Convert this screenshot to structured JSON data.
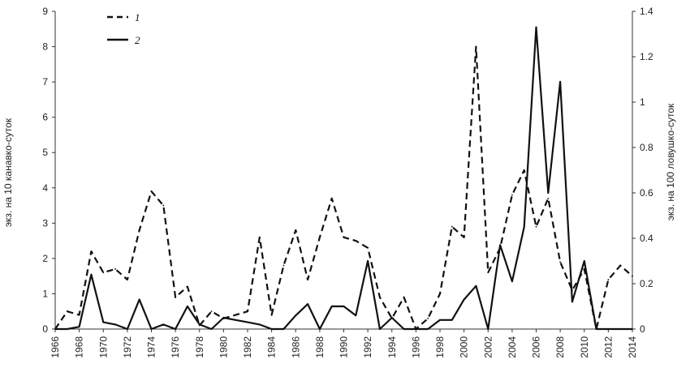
{
  "chart_data": {
    "type": "line",
    "title": "",
    "xlabel": "",
    "ylabel_left": "экз. на 10 канавко-суток",
    "ylabel_right": "экз. на 100 ловушко-суток",
    "xlim": [
      1966,
      2014
    ],
    "ylim_left": [
      0,
      9
    ],
    "ylim_right": [
      0,
      1.4
    ],
    "x_ticks": [
      "1966",
      "1968",
      "1970",
      "1972",
      "1974",
      "1976",
      "1978",
      "1980",
      "1982",
      "1984",
      "1986",
      "1988",
      "1990",
      "1992",
      "1994",
      "1996",
      "1998",
      "2000",
      "2002",
      "2004",
      "2006",
      "2008",
      "2010",
      "2012",
      "2014"
    ],
    "y_ticks_left": [
      "0",
      "1",
      "2",
      "3",
      "4",
      "5",
      "6",
      "7",
      "8",
      "9"
    ],
    "y_ticks_right": [
      "0",
      "0.2",
      "0.4",
      "0.6",
      "0.8",
      "1",
      "1.2",
      "1.4"
    ],
    "grid": false,
    "legend_position": "top-left",
    "series": [
      {
        "name": "1",
        "style": "dashed",
        "axis": "left",
        "x": [
          1966,
          1967,
          1968,
          1969,
          1970,
          1971,
          1972,
          1973,
          1974,
          1975,
          1976,
          1977,
          1978,
          1979,
          1980,
          1981,
          1982,
          1983,
          1984,
          1985,
          1986,
          1987,
          1988,
          1989,
          1990,
          1991,
          1992,
          1993,
          1994,
          1995,
          1996,
          1997,
          1998,
          1999,
          2000,
          2001,
          2002,
          2003,
          2004,
          2005,
          2006,
          2007,
          2008,
          2009,
          2010,
          2011,
          2012,
          2013,
          2014
        ],
        "values": [
          0,
          0.5,
          0.4,
          2.2,
          1.6,
          1.7,
          1.4,
          2.8,
          3.9,
          3.5,
          0.9,
          1.2,
          0.1,
          0.5,
          0.3,
          0.4,
          0.5,
          2.6,
          0.4,
          1.8,
          2.8,
          1.4,
          2.6,
          3.7,
          2.6,
          2.5,
          2.3,
          0.9,
          0.3,
          0.9,
          0,
          0.3,
          1,
          2.9,
          2.6,
          8,
          1.6,
          2.3,
          3.8,
          4.5,
          2.9,
          3.7,
          1.9,
          1.1,
          1.7,
          0,
          1.4,
          1.8,
          1.5
        ]
      },
      {
        "name": "2",
        "style": "solid",
        "axis": "right",
        "x": [
          1966,
          1967,
          1968,
          1969,
          1970,
          1971,
          1972,
          1973,
          1974,
          1975,
          1976,
          1977,
          1978,
          1979,
          1980,
          1981,
          1982,
          1983,
          1984,
          1985,
          1986,
          1987,
          1988,
          1989,
          1990,
          1991,
          1992,
          1993,
          1994,
          1995,
          1996,
          1997,
          1998,
          1999,
          2000,
          2001,
          2002,
          2003,
          2004,
          2005,
          2006,
          2007,
          2008,
          2009,
          2010,
          2011,
          2012,
          2013,
          2014
        ],
        "values": [
          0,
          0,
          0.01,
          0.24,
          0.03,
          0.02,
          0,
          0.13,
          0,
          0.02,
          0,
          0.1,
          0.02,
          0,
          0.05,
          0.04,
          0.03,
          0.02,
          0,
          0,
          0.06,
          0.11,
          0,
          0.1,
          0.1,
          0.06,
          0.3,
          0,
          0.05,
          0,
          0,
          0,
          0.04,
          0.04,
          0.13,
          0.19,
          0,
          0.37,
          0.21,
          0.45,
          1.33,
          0.6,
          1.09,
          0.12,
          0.3,
          0,
          0,
          0,
          0
        ]
      }
    ]
  }
}
